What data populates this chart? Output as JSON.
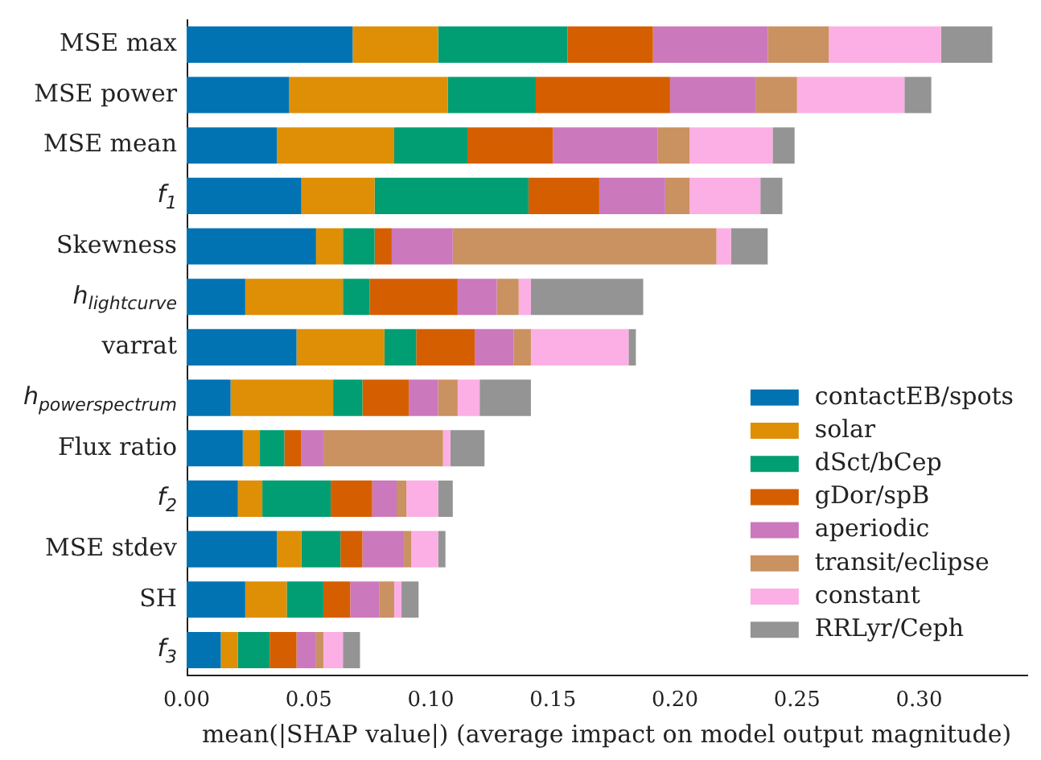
{
  "chart_data": {
    "type": "bar",
    "orientation": "horizontal",
    "stacked": true,
    "xlabel": "mean(|SHAP value|) (average impact on model output magnitude)",
    "categories": [
      "MSE max",
      "MSE power",
      "MSE mean",
      "f$_{1}$",
      "Skewness",
      "h$_{lightcurve}$",
      "varrat",
      "h$_{powerspectrum}$",
      "Flux ratio",
      "f$_{2}$",
      "MSE stdev",
      "SH",
      "f$_{3}$"
    ],
    "xlim": [
      0,
      0.344
    ],
    "xticks": [
      {
        "value": 0,
        "label": "0.00"
      },
      {
        "value": 0.05,
        "label": "0.05"
      },
      {
        "value": 0.1,
        "label": "0.10"
      },
      {
        "value": 0.15,
        "label": "0.15"
      },
      {
        "value": 0.2,
        "label": "0.20"
      },
      {
        "value": 0.25,
        "label": "0.25"
      },
      {
        "value": 0.3,
        "label": "0.30"
      }
    ],
    "grid": false,
    "legend": "bottom right",
    "series": [
      {
        "name": "contactEB/spots",
        "color": "#0173b2",
        "values": [
          0.068,
          0.042,
          0.037,
          0.047,
          0.053,
          0.024,
          0.045,
          0.018,
          0.023,
          0.021,
          0.037,
          0.024,
          0.014
        ]
      },
      {
        "name": "solar",
        "color": "#de8f05",
        "values": [
          0.035,
          0.065,
          0.048,
          0.03,
          0.011,
          0.04,
          0.036,
          0.042,
          0.007,
          0.01,
          0.01,
          0.017,
          0.007
        ]
      },
      {
        "name": "dSct/bCep",
        "color": "#029e73",
        "values": [
          0.053,
          0.036,
          0.03,
          0.063,
          0.013,
          0.011,
          0.013,
          0.012,
          0.01,
          0.028,
          0.016,
          0.015,
          0.013
        ]
      },
      {
        "name": "gDor/spB",
        "color": "#d55e00",
        "values": [
          0.035,
          0.055,
          0.035,
          0.029,
          0.007,
          0.036,
          0.024,
          0.019,
          0.007,
          0.017,
          0.009,
          0.011,
          0.011
        ]
      },
      {
        "name": "aperiodic",
        "color": "#cc78bc",
        "values": [
          0.047,
          0.035,
          0.043,
          0.027,
          0.025,
          0.016,
          0.016,
          0.012,
          0.009,
          0.01,
          0.017,
          0.012,
          0.008
        ]
      },
      {
        "name": "transit/eclipse",
        "color": "#ca9161",
        "values": [
          0.025,
          0.017,
          0.013,
          0.01,
          0.108,
          0.009,
          0.007,
          0.008,
          0.049,
          0.004,
          0.003,
          0.006,
          0.003
        ]
      },
      {
        "name": "constant",
        "color": "#fbafe4",
        "values": [
          0.046,
          0.044,
          0.034,
          0.029,
          0.006,
          0.005,
          0.04,
          0.009,
          0.003,
          0.013,
          0.011,
          0.003,
          0.008
        ]
      },
      {
        "name": "RRLyr/Ceph",
        "color": "#949494",
        "values": [
          0.021,
          0.011,
          0.009,
          0.009,
          0.015,
          0.046,
          0.003,
          0.021,
          0.014,
          0.006,
          0.003,
          0.007,
          0.007
        ]
      }
    ]
  }
}
